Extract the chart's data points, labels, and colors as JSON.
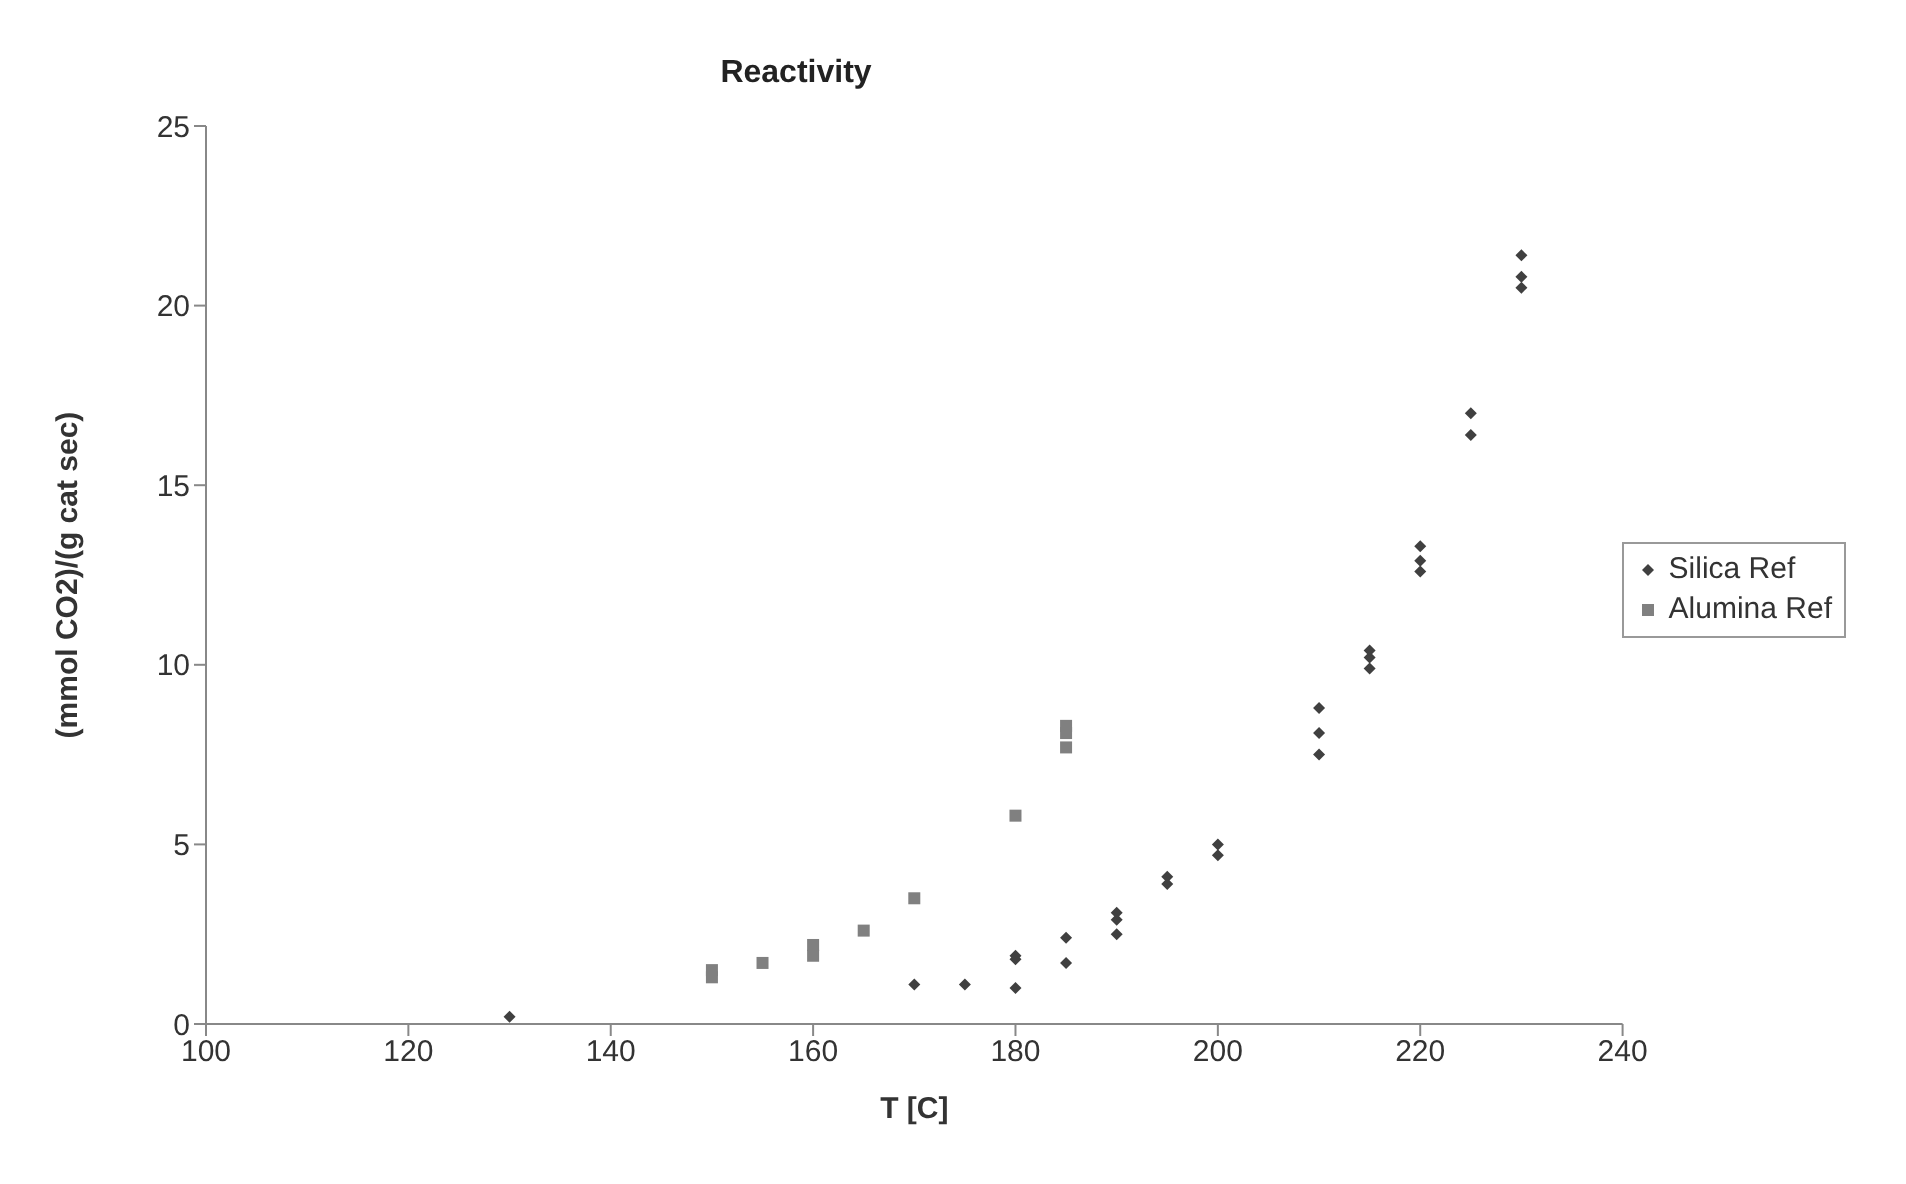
{
  "chart_data": {
    "type": "scatter",
    "title": "Reactivity",
    "xlabel": "T [C]",
    "ylabel": "(mmol CO2)/(g cat sec)",
    "xlim": [
      100,
      240
    ],
    "xticks": [
      100,
      120,
      140,
      160,
      180,
      200,
      220,
      240
    ],
    "ylim": [
      0,
      25
    ],
    "yticks": [
      0,
      5,
      10,
      15,
      20,
      25
    ],
    "grid": false,
    "legend": "right",
    "series": [
      {
        "name": "Silica Ref",
        "color": "#404040",
        "marker": "diamond",
        "x": [
          130,
          170,
          175,
          180,
          180,
          180,
          185,
          185,
          190,
          190,
          190,
          195,
          195,
          200,
          200,
          210,
          210,
          210,
          215,
          215,
          215,
          220,
          220,
          220,
          225,
          225,
          230,
          230,
          230
        ],
        "values": [
          0.2,
          1.1,
          1.1,
          1.0,
          1.8,
          1.9,
          1.7,
          2.4,
          2.5,
          2.9,
          3.1,
          3.9,
          4.1,
          4.7,
          5.0,
          7.5,
          8.1,
          8.8,
          9.9,
          10.2,
          10.4,
          12.6,
          12.9,
          13.3,
          16.4,
          17.0,
          20.5,
          20.8,
          21.4
        ]
      },
      {
        "name": "Alumina Ref",
        "color": "#808080",
        "marker": "square",
        "x": [
          150,
          150,
          155,
          160,
          160,
          165,
          170,
          180,
          185,
          185,
          185
        ],
        "values": [
          1.3,
          1.5,
          1.7,
          1.9,
          2.2,
          2.6,
          3.5,
          5.8,
          7.7,
          8.1,
          8.3
        ]
      }
    ]
  }
}
